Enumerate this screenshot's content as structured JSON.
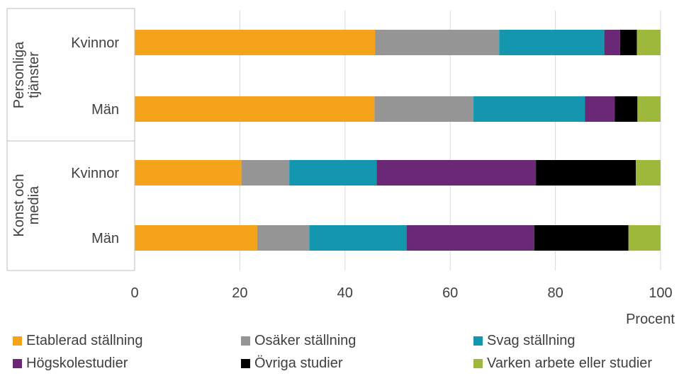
{
  "chart_data": {
    "type": "bar",
    "orientation": "horizontal",
    "stacked": true,
    "xlabel": "Procent",
    "xlim": [
      0,
      100
    ],
    "xticks": [
      0,
      20,
      40,
      60,
      80,
      100
    ],
    "grid": true,
    "legend_position": "bottom",
    "groups": [
      {
        "label": "Personliga tjänster",
        "categories": [
          "Kvinnor",
          "Män"
        ]
      },
      {
        "label": "Konst och media",
        "categories": [
          "Kvinnor",
          "Män"
        ]
      }
    ],
    "series": [
      {
        "name": "Etablerad ställning",
        "color": "#F5A31A",
        "values": [
          45.7,
          45.6,
          20.3,
          23.3
        ]
      },
      {
        "name": "Osäker ställning",
        "color": "#959595",
        "values": [
          23.6,
          18.8,
          9.1,
          9.9
        ]
      },
      {
        "name": "Svag ställning",
        "color": "#1396AE",
        "values": [
          20.0,
          21.2,
          16.6,
          18.5
        ]
      },
      {
        "name": "Högskolestudier",
        "color": "#6B2876",
        "values": [
          3.0,
          5.7,
          30.3,
          24.3
        ]
      },
      {
        "name": "Övriga studier",
        "color": "#000000",
        "values": [
          3.2,
          4.3,
          19.0,
          17.9
        ]
      },
      {
        "name": "Varken arbete eller studier",
        "color": "#9DB83A",
        "values": [
          4.5,
          4.4,
          4.7,
          6.1
        ]
      }
    ]
  }
}
